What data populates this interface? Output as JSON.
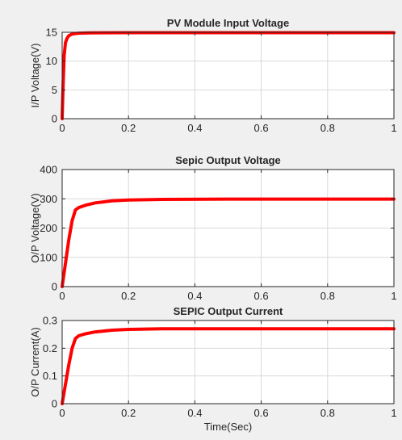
{
  "figure": {
    "background": "#f0f0f0",
    "axes_background": "#ffffff",
    "line_color": "#ff0000",
    "grid_color": "#d9d9d9"
  },
  "chart_data": [
    {
      "type": "line",
      "title": "PV Module Input Voltage",
      "xlabel": "",
      "ylabel": "I/P Voltage(V)",
      "xlim": [
        0,
        1
      ],
      "ylim": [
        0,
        15
      ],
      "xticks": [
        0,
        0.2,
        0.4,
        0.6,
        0.8,
        1
      ],
      "xtick_labels": [
        "0",
        "0.2",
        "0.4",
        "0.6",
        "0.8",
        "1"
      ],
      "yticks": [
        0,
        5,
        10,
        15
      ],
      "ytick_labels": [
        "0",
        "5",
        "10",
        "15"
      ],
      "grid": true,
      "series": [
        {
          "color": "#ff0000",
          "x": [
            0,
            0.003,
            0.006,
            0.01,
            0.015,
            0.02,
            0.03,
            0.05,
            0.08,
            0.12,
            0.2,
            0.4,
            0.6,
            0.8,
            1
          ],
          "y": [
            0,
            6,
            11,
            13.2,
            14.0,
            14.4,
            14.7,
            14.85,
            14.9,
            14.92,
            14.93,
            14.93,
            14.93,
            14.93,
            14.93
          ]
        }
      ]
    },
    {
      "type": "line",
      "title": "Sepic Output Voltage",
      "xlabel": "",
      "ylabel": "O/P Voltage(V)",
      "xlim": [
        0,
        1
      ],
      "ylim": [
        0,
        400
      ],
      "xticks": [
        0,
        0.2,
        0.4,
        0.6,
        0.8,
        1
      ],
      "xtick_labels": [
        "0",
        "0.2",
        "0.4",
        "0.6",
        "0.8",
        "1"
      ],
      "yticks": [
        0,
        100,
        200,
        300,
        400
      ],
      "ytick_labels": [
        "0",
        "100",
        "200",
        "300",
        "400"
      ],
      "grid": true,
      "series": [
        {
          "color": "#ff0000",
          "x": [
            0,
            0.01,
            0.02,
            0.03,
            0.04,
            0.05,
            0.07,
            0.1,
            0.15,
            0.2,
            0.3,
            0.5,
            0.7,
            1
          ],
          "y": [
            0,
            80,
            160,
            225,
            262,
            270,
            278,
            286,
            293,
            296,
            298,
            299,
            299,
            299
          ]
        }
      ]
    },
    {
      "type": "line",
      "title": "SEPIC Output Current",
      "xlabel": "Time(Sec)",
      "ylabel": "O/P Current(A)",
      "xlim": [
        0,
        1
      ],
      "ylim": [
        0,
        0.3
      ],
      "xticks": [
        0,
        0.2,
        0.4,
        0.6,
        0.8,
        1
      ],
      "xtick_labels": [
        "0",
        "0.2",
        "0.4",
        "0.6",
        "0.8",
        "1"
      ],
      "yticks": [
        0,
        0.1,
        0.2,
        0.3
      ],
      "ytick_labels": [
        "0",
        "0.1",
        "0.2",
        "0.3"
      ],
      "grid": true,
      "series": [
        {
          "color": "#ff0000",
          "x": [
            0,
            0.01,
            0.02,
            0.03,
            0.04,
            0.05,
            0.07,
            0.1,
            0.15,
            0.2,
            0.3,
            0.5,
            0.7,
            1
          ],
          "y": [
            0,
            0.07,
            0.14,
            0.2,
            0.235,
            0.245,
            0.252,
            0.259,
            0.265,
            0.268,
            0.27,
            0.27,
            0.27,
            0.27
          ]
        }
      ]
    }
  ]
}
